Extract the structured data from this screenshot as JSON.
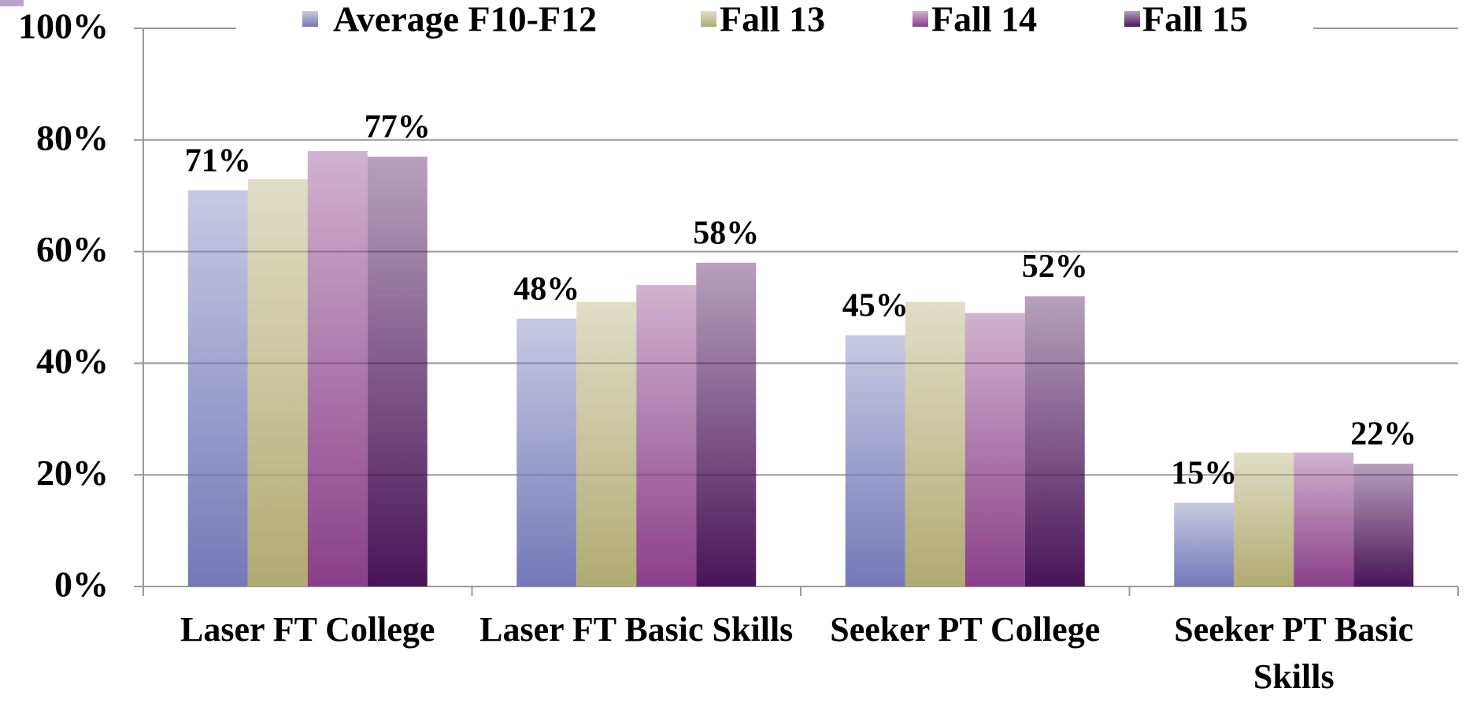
{
  "chart_data": {
    "type": "bar",
    "categories": [
      "Laser FT College",
      "Laser FT Basic Skills",
      "Seeker PT College",
      "Seeker PT Basic Skills"
    ],
    "series": [
      {
        "name": "Average F10-F12",
        "color": "#7478b8",
        "values": [
          71,
          48,
          45,
          15
        ],
        "value_labels": [
          "71%",
          "48%",
          "45%",
          "15%"
        ]
      },
      {
        "name": "Fall 13",
        "color": "#b0ab72",
        "values": [
          73,
          51,
          51,
          24
        ]
      },
      {
        "name": "Fall 14",
        "color": "#8a3f88",
        "values": [
          78,
          54,
          49,
          24
        ]
      },
      {
        "name": "Fall 15",
        "color": "#4a1458",
        "values": [
          77,
          58,
          52,
          22
        ],
        "value_labels": [
          "77%",
          "58%",
          "52%",
          "22%"
        ]
      }
    ],
    "ylim": [
      0,
      100
    ],
    "yticks": [
      {
        "value": 0,
        "label": "0%"
      },
      {
        "value": 20,
        "label": "20%"
      },
      {
        "value": 40,
        "label": "40%"
      },
      {
        "value": 60,
        "label": "60%"
      },
      {
        "value": 80,
        "label": "80%"
      },
      {
        "value": 100,
        "label": "100%"
      }
    ],
    "grid": true,
    "legend": "top"
  }
}
